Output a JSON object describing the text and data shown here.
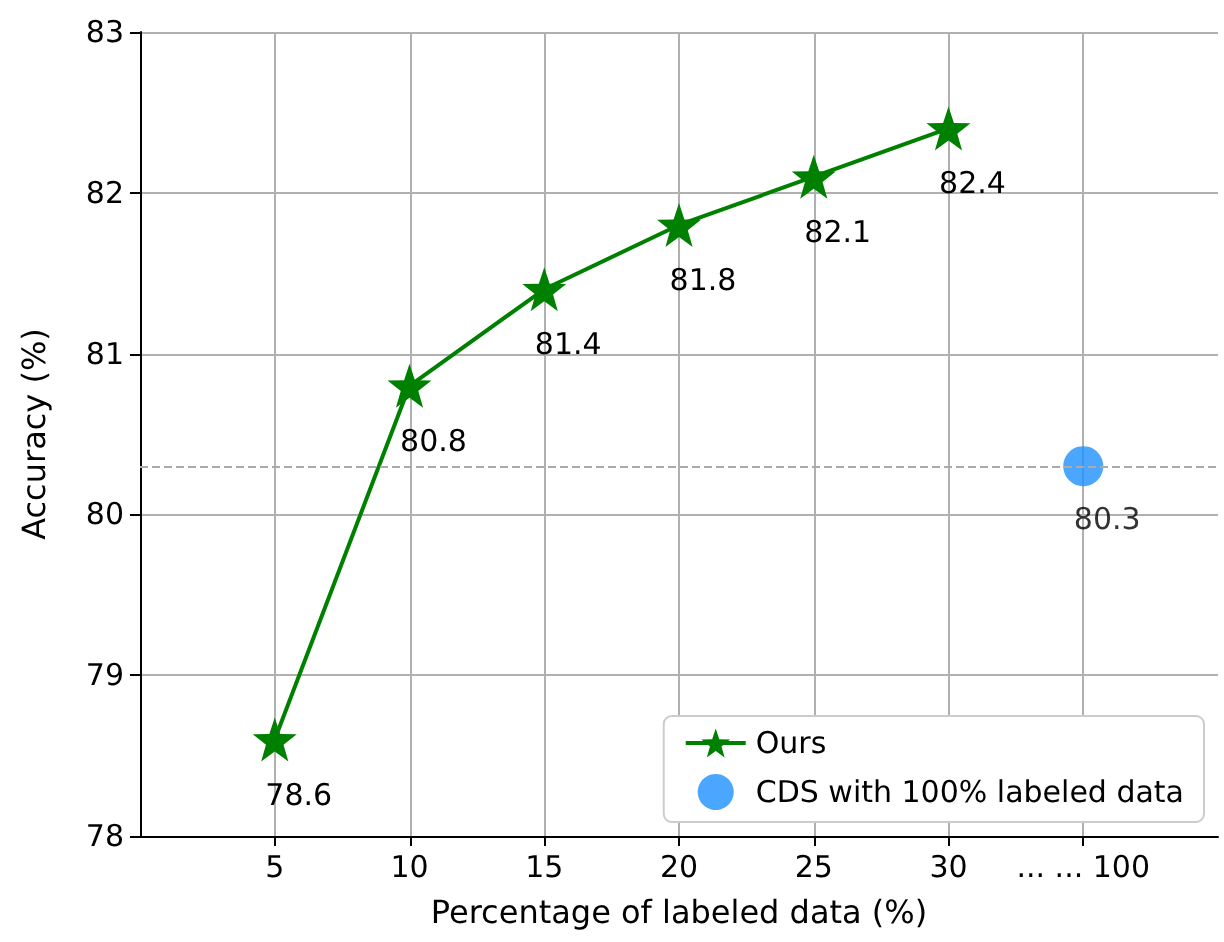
{
  "chart_data": {
    "type": "line",
    "xlabel": "Percentage of labeled data (%)",
    "ylabel": "Accuracy (%)",
    "categories": [
      null,
      "5",
      "10",
      "15",
      "20",
      "25",
      "30",
      "... ... 100",
      null
    ],
    "ylim": [
      78,
      83
    ],
    "yticks": [
      78,
      79,
      80,
      81,
      82,
      83
    ],
    "series": [
      {
        "name": "Ours",
        "color": "#008000",
        "marker": "star",
        "values": [
          null,
          78.6,
          80.8,
          81.4,
          81.8,
          82.1,
          82.4,
          null,
          null
        ]
      },
      {
        "name": "CDS with 100% labeled data",
        "type": "scatter",
        "color": "#1e90ff",
        "marker": "circle",
        "values": [
          null,
          null,
          null,
          null,
          null,
          null,
          null,
          80.3,
          null
        ]
      }
    ],
    "ref_lines": [
      {
        "axis": "y",
        "value": 80.3,
        "label": null,
        "color": "#aaaaaa",
        "line_style": "dashed"
      }
    ],
    "data_labels": true,
    "grid": true,
    "legend": "bottom right"
  }
}
